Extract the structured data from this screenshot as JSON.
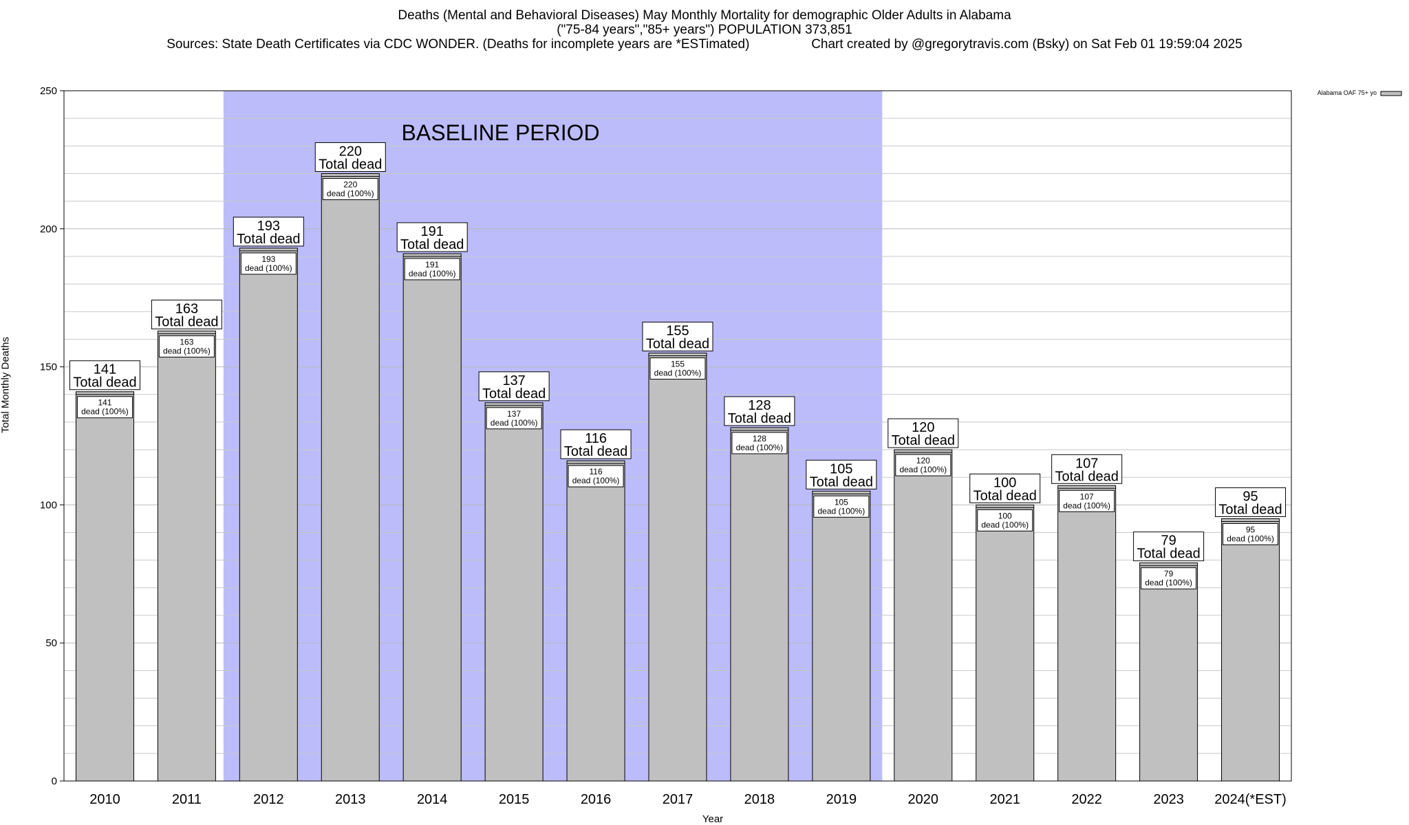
{
  "title": {
    "line1": "Deaths (Mental and Behavioral Diseases) May Monthly Mortality for demographic Older Adults in Alabama",
    "line2": "(\"75-84 years\",\"85+ years\") POPULATION 373,851",
    "line3": "Sources: State Death Certificates via CDC WONDER. (Deaths for incomplete years are *ESTimated)                 Chart created by @gregorytravis.com (Bsky) on Sat Feb 01 19:59:04 2025"
  },
  "chart_data": {
    "type": "bar",
    "categories": [
      "2010",
      "2011",
      "2012",
      "2013",
      "2014",
      "2015",
      "2016",
      "2017",
      "2018",
      "2019",
      "2020",
      "2021",
      "2022",
      "2023",
      "2024(*EST)"
    ],
    "series": [
      {
        "name": "Alabama OAF 75+ yo",
        "values": [
          141,
          163,
          193,
          220,
          191,
          137,
          116,
          155,
          128,
          105,
          120,
          100,
          107,
          79,
          95
        ]
      }
    ],
    "top_label_suffix": "Total dead",
    "inner_label_suffix": "dead (100%)",
    "xlabel": "Year",
    "ylabel": "Total Monthly Deaths",
    "ylim": [
      0,
      250
    ],
    "yticks": [
      0,
      50,
      100,
      150,
      200,
      250
    ],
    "minor_grid_step": 10,
    "baseline": {
      "label": "BASELINE PERIOD",
      "start": "2012",
      "end": "2019"
    },
    "legend": {
      "label": "Alabama OAF 75+ yo",
      "placement": "top-right"
    },
    "colors": {
      "bar": "#c0c0c0",
      "baseline": "#bcbcfb",
      "grid": "#c8c8c8",
      "axis": "#000000"
    }
  }
}
